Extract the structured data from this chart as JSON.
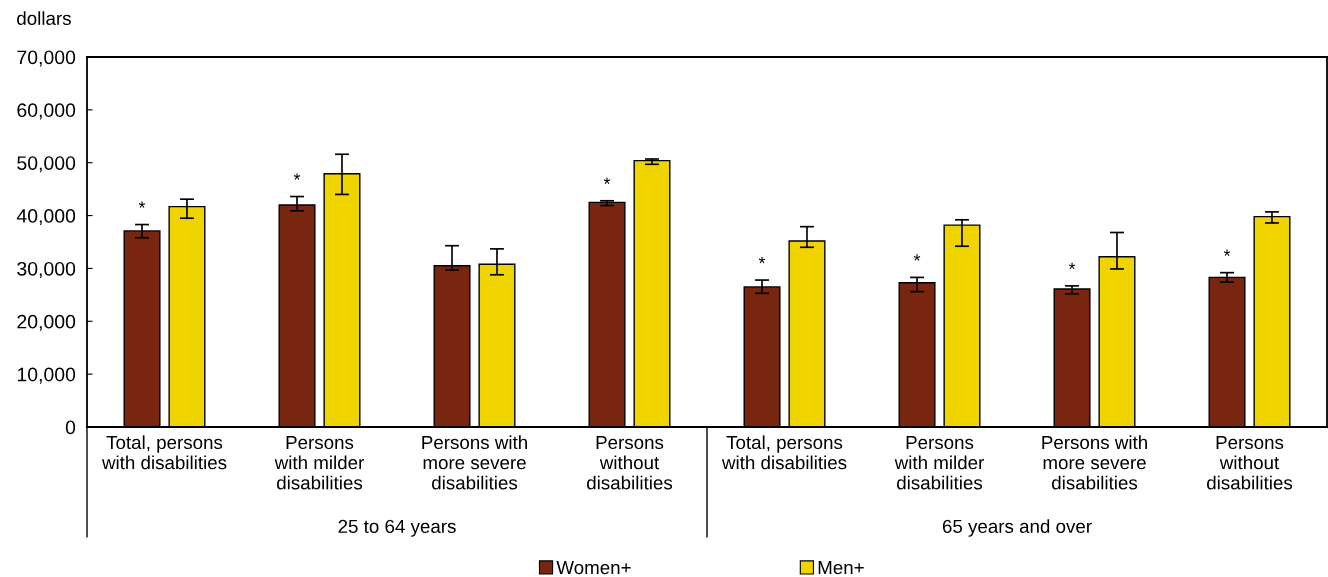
{
  "chart_data": {
    "type": "bar",
    "ylabel": "dollars",
    "categories": [
      "Total, persons\nwith disabilities",
      "Persons\nwith milder\ndisabilities",
      "Persons with\nmore severe\ndisabilities",
      "Persons\nwithout\ndisabilities",
      "Total, persons\nwith disabilities",
      "Persons\nwith milder\ndisabilities",
      "Persons with\nmore severe\ndisabilities",
      "Persons\nwithout\ndisabilities"
    ],
    "series": [
      {
        "name": "Women+",
        "color": "#78260f",
        "values": [
          37100,
          42000,
          30500,
          42500,
          26500,
          27300,
          26100,
          28300
        ],
        "errors": [
          [
            35800,
            38300
          ],
          [
            40900,
            43600
          ],
          [
            29700,
            34300
          ],
          [
            41900,
            42800
          ],
          [
            25300,
            27800
          ],
          [
            25600,
            28300
          ],
          [
            25200,
            26700
          ],
          [
            27400,
            29200
          ]
        ],
        "value_labels": [
          "*",
          "*",
          null,
          "*",
          "*",
          "*",
          "*",
          "*"
        ]
      },
      {
        "name": "Men+",
        "color": "#f0d400",
        "values": [
          41700,
          47900,
          30800,
          50400,
          35200,
          38200,
          32200,
          39800
        ],
        "errors": [
          [
            39500,
            43100
          ],
          [
            44000,
            51600
          ],
          [
            28800,
            33700
          ],
          [
            49700,
            50700
          ],
          [
            34000,
            37900
          ],
          [
            34200,
            39200
          ],
          [
            29900,
            36800
          ],
          [
            38600,
            40700
          ]
        ]
      }
    ],
    "ylim": [
      0,
      70000
    ],
    "yticks": [
      0,
      {
        "value": 10000,
        "label": "10,000"
      },
      {
        "value": 20000,
        "label": "20,000"
      },
      {
        "value": 30000,
        "label": "30,000"
      },
      {
        "value": 40000,
        "label": "40,000"
      },
      {
        "value": 50000,
        "label": "50,000"
      },
      {
        "value": 60000,
        "label": "60,000"
      },
      {
        "value": 70000,
        "label": "70,000"
      }
    ],
    "annotations": [
      "25 to 64 years",
      "65 years and over"
    ],
    "legend": "bottom"
  }
}
